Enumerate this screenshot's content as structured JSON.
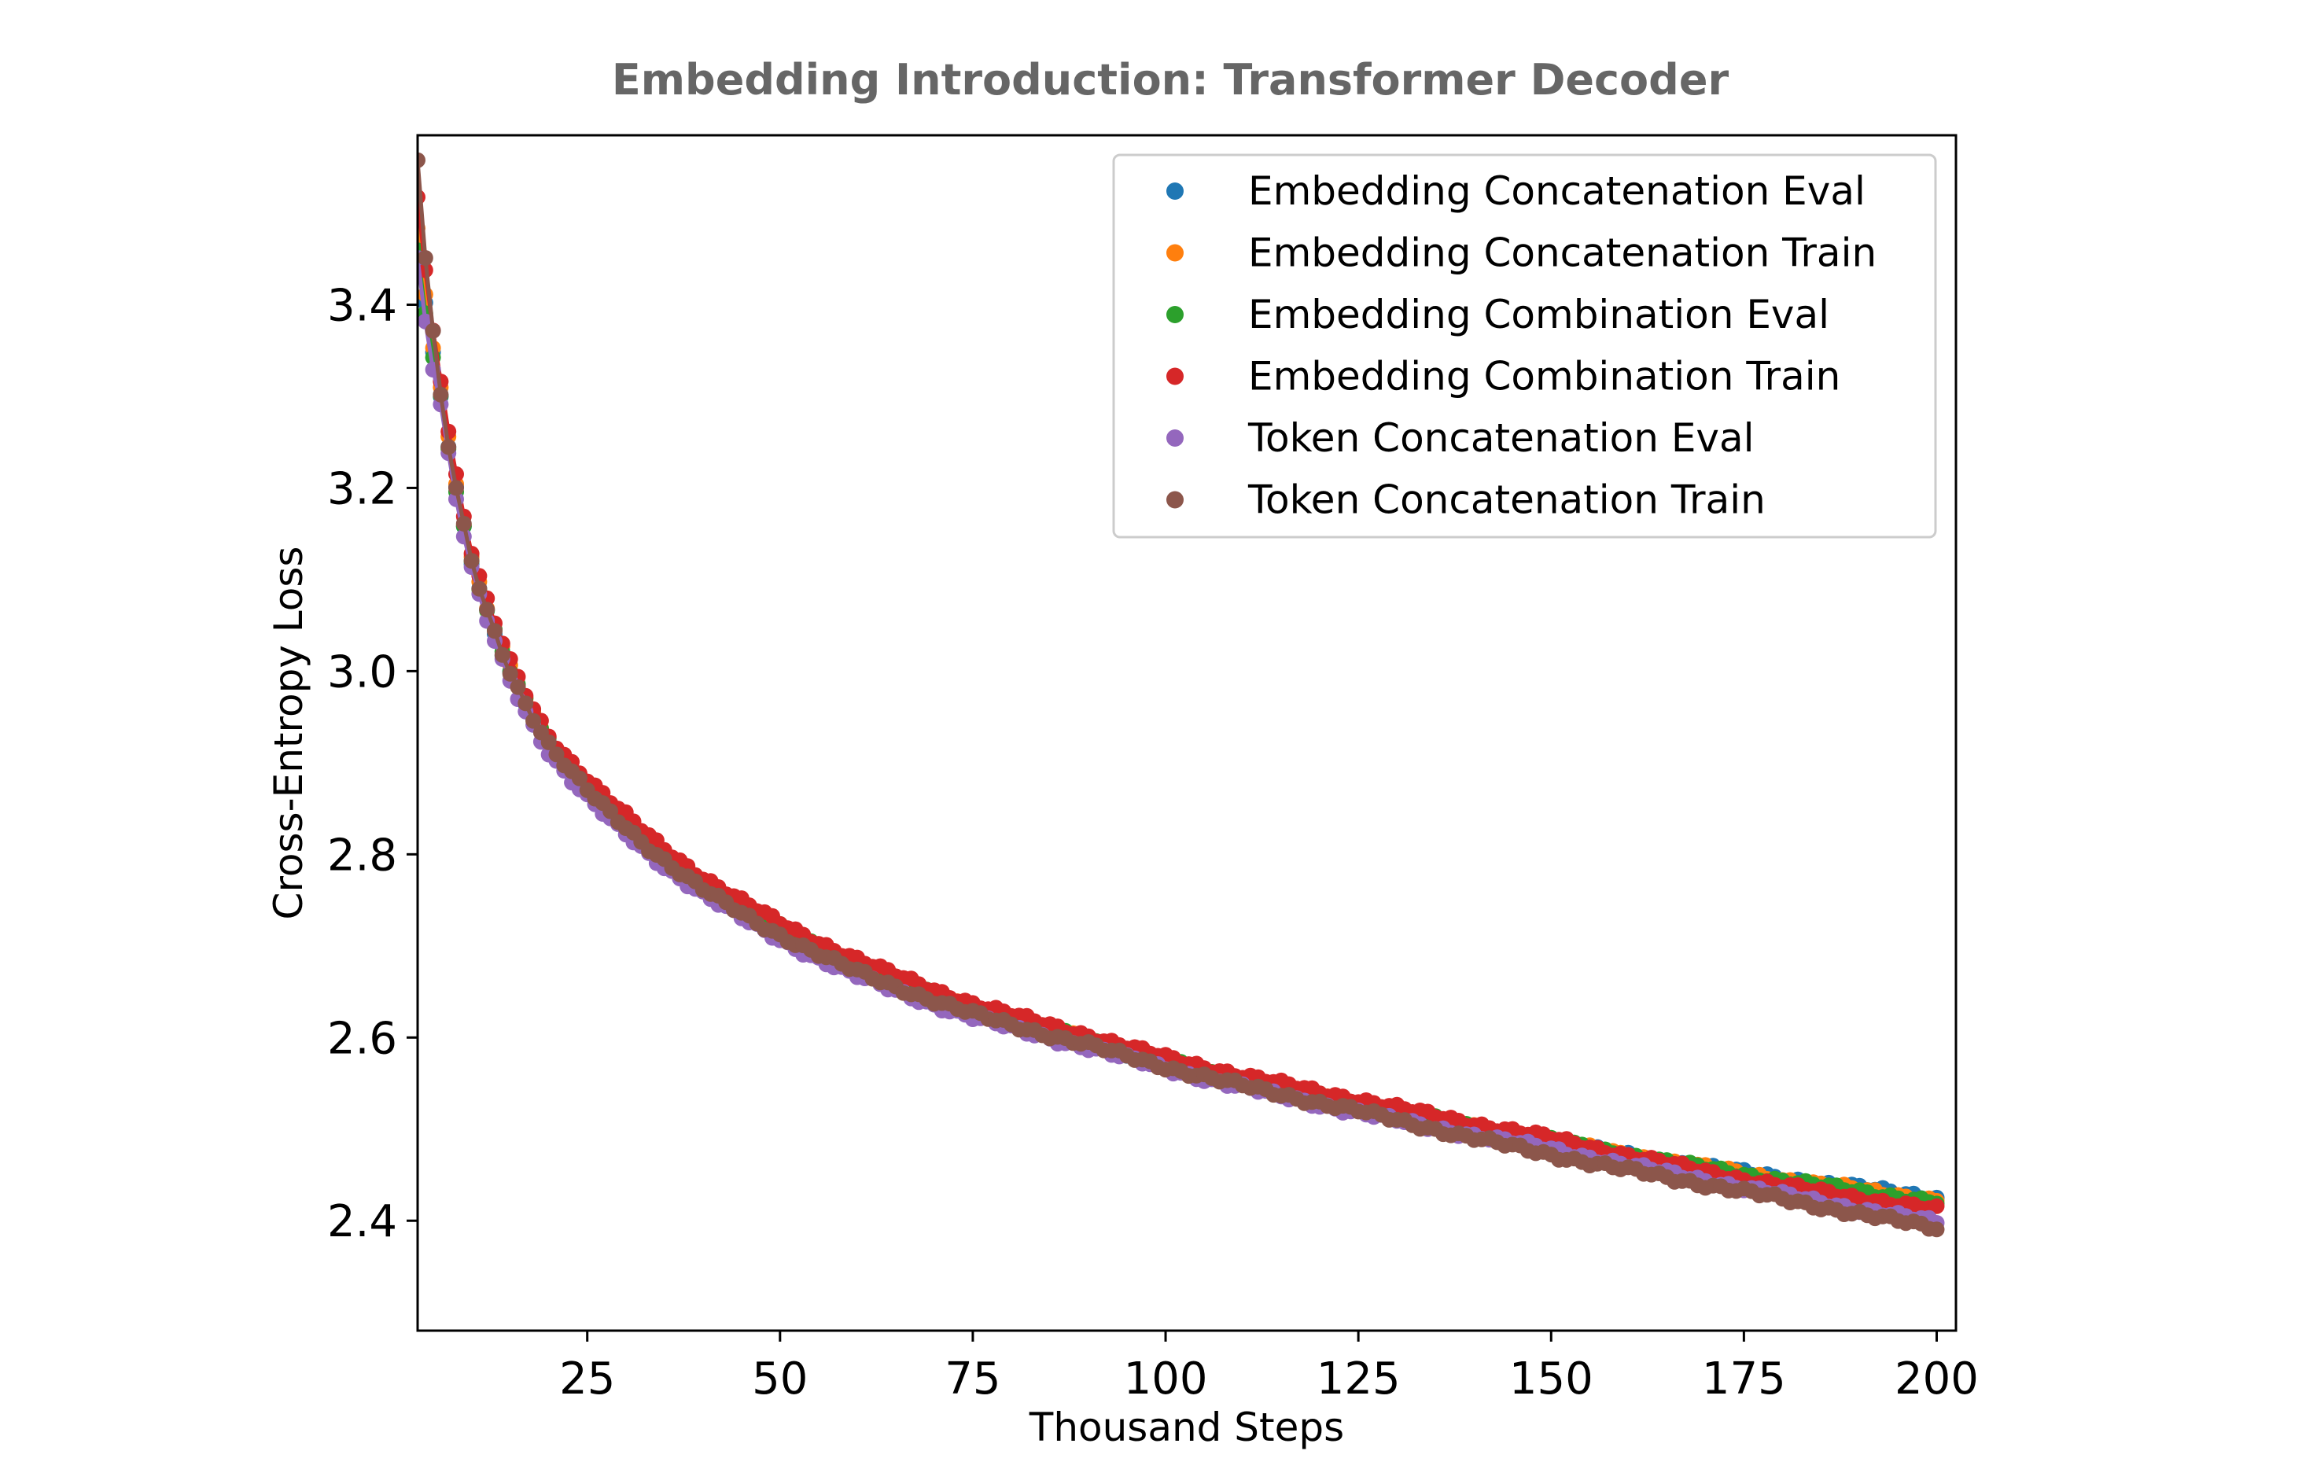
{
  "chart_data": {
    "type": "scatter",
    "title": "Embedding Introduction: Transformer Decoder",
    "xlabel": "Thousand Steps",
    "ylabel": "Cross-Entropy Loss",
    "xlim": [
      3,
      202.5
    ],
    "ylim": [
      2.28,
      3.585
    ],
    "xticks": [
      25,
      50,
      75,
      100,
      125,
      150,
      175,
      200
    ],
    "xtick_labels": [
      "25",
      "50",
      "75",
      "100",
      "125",
      "150",
      "175",
      "200"
    ],
    "yticks": [
      2.4,
      2.6,
      2.8,
      3.0,
      3.2,
      3.4
    ],
    "ytick_labels": [
      "2.4",
      "2.6",
      "2.8",
      "3.0",
      "3.2",
      "3.4"
    ],
    "grid": false,
    "legend_position": "upper right",
    "x_start": 3,
    "x_end": 200,
    "x_step": 1,
    "series": [
      {
        "name": "Embedding Concatenation Eval",
        "color": "#1f77b4",
        "anchors_x": [
          3,
          6,
          10,
          15,
          20,
          25,
          30,
          40,
          50,
          60,
          75,
          90,
          100,
          125,
          150,
          175,
          200
        ],
        "anchors_y": [
          3.47,
          3.3,
          3.12,
          3.0,
          2.92,
          2.87,
          2.83,
          2.765,
          2.715,
          2.675,
          2.63,
          2.595,
          2.572,
          2.525,
          2.485,
          2.452,
          2.425
        ]
      },
      {
        "name": "Embedding Concatenation Train",
        "color": "#ff7f0e",
        "anchors_x": [
          3,
          6,
          10,
          15,
          20,
          25,
          30,
          40,
          50,
          60,
          75,
          90,
          100,
          125,
          150,
          175,
          200
        ],
        "anchors_y": [
          3.48,
          3.31,
          3.125,
          3.005,
          2.922,
          2.872,
          2.832,
          2.768,
          2.718,
          2.678,
          2.632,
          2.597,
          2.573,
          2.526,
          2.486,
          2.451,
          2.422
        ]
      },
      {
        "name": "Embedding Combination Eval",
        "color": "#2ca02c",
        "anchors_x": [
          3,
          6,
          10,
          15,
          20,
          25,
          30,
          40,
          50,
          60,
          75,
          90,
          100,
          125,
          150,
          175,
          200
        ],
        "anchors_y": [
          3.46,
          3.3,
          3.12,
          3.0,
          2.925,
          2.875,
          2.835,
          2.77,
          2.72,
          2.68,
          2.632,
          2.598,
          2.574,
          2.527,
          2.487,
          2.45,
          2.42
        ]
      },
      {
        "name": "Embedding Combination Train",
        "color": "#d62728",
        "anchors_x": [
          3,
          6,
          10,
          15,
          20,
          25,
          30,
          40,
          50,
          60,
          75,
          90,
          100,
          125,
          150,
          175,
          200
        ],
        "anchors_y": [
          3.52,
          3.32,
          3.13,
          3.01,
          2.93,
          2.882,
          2.842,
          2.775,
          2.725,
          2.685,
          2.637,
          2.602,
          2.578,
          2.532,
          2.49,
          2.445,
          2.412
        ]
      },
      {
        "name": "Token Concatenation Eval",
        "color": "#9467bd",
        "anchors_x": [
          3,
          6,
          10,
          15,
          20,
          25,
          30,
          40,
          50,
          60,
          75,
          90,
          100,
          125,
          150,
          175,
          200
        ],
        "anchors_y": [
          3.45,
          3.29,
          3.11,
          2.99,
          2.912,
          2.862,
          2.822,
          2.757,
          2.707,
          2.667,
          2.622,
          2.589,
          2.566,
          2.518,
          2.478,
          2.436,
          2.398
        ]
      },
      {
        "name": "Token Concatenation Train",
        "color": "#8c564b",
        "anchors_x": [
          3,
          6,
          10,
          15,
          20,
          25,
          30,
          40,
          50,
          60,
          75,
          90,
          100,
          125,
          150,
          175,
          200
        ],
        "anchors_y": [
          3.56,
          3.3,
          3.12,
          3.0,
          2.92,
          2.87,
          2.83,
          2.762,
          2.712,
          2.672,
          2.626,
          2.592,
          2.568,
          2.52,
          2.472,
          2.432,
          2.392
        ]
      }
    ]
  }
}
